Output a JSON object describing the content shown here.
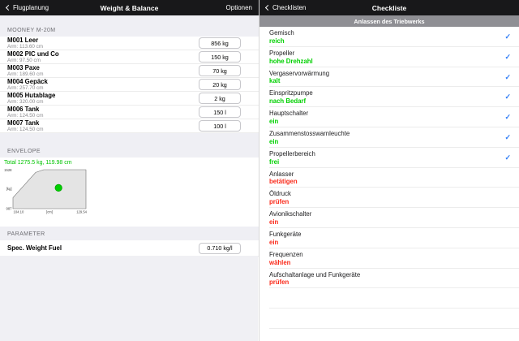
{
  "left_panel": {
    "nav": {
      "back_label": "Flugplanung",
      "title": "Weight & Balance",
      "right_label": "Optionen"
    },
    "section_aircraft": "MOONEY M-20M",
    "rows": [
      {
        "title": "M001 Leer",
        "arm": "Arm: 113.60 cm",
        "value": "856 kg"
      },
      {
        "title": "M002 PIC und Co",
        "arm": "Arm: 97.50 cm",
        "value": "150 kg"
      },
      {
        "title": "M003 Paxe",
        "arm": "Arm: 189.60 cm",
        "value": "70 kg"
      },
      {
        "title": "M004 Gepäck",
        "arm": "Arm: 257.70 cm",
        "value": "20 kg"
      },
      {
        "title": "M005 Hutablage",
        "arm": "Arm: 320.00 cm",
        "value": "2 kg"
      },
      {
        "title": "M006 Tank",
        "arm": "Arm: 124.50 cm",
        "value": "150 l"
      },
      {
        "title": "M007 Tank",
        "arm": "Arm: 124.50 cm",
        "value": "100 l"
      }
    ],
    "section_envelope": "ENVELOPE",
    "chart_data": {
      "type": "scatter",
      "title": "Total 1275.5 kg, 119.98 cm",
      "xlabel": "[cm]",
      "ylabel": "[kg]",
      "xlim": [
        104.1,
        129.54
      ],
      "ylim": [
        987,
        1528
      ],
      "x_ticks": [
        "104.10",
        "129.54"
      ],
      "y_ticks": [
        "987",
        "1528"
      ],
      "envelope_polygon": [
        [
          104.1,
          987
        ],
        [
          104.1,
          1140
        ],
        [
          112.0,
          1490
        ],
        [
          114.8,
          1528
        ],
        [
          129.54,
          1528
        ],
        [
          129.54,
          987
        ]
      ],
      "point": {
        "x": 119.98,
        "y": 1275.5
      },
      "legend": "none",
      "grid": false
    },
    "section_parameter": "PARAMETER",
    "parameter_row": {
      "title": "Spec. Weight Fuel",
      "value": "0.710 kg/l"
    }
  },
  "right_panel": {
    "nav": {
      "back_label": "Checklisten",
      "title": "Checkliste"
    },
    "banner": "Anlassen des Triebwerks",
    "items": [
      {
        "title": "Gemisch",
        "value": "reich",
        "state": "done"
      },
      {
        "title": "Propeller",
        "value": "hohe Drehzahl",
        "state": "done"
      },
      {
        "title": "Vergaservorwärmung",
        "value": "kalt",
        "state": "done"
      },
      {
        "title": "Einspritzpumpe",
        "value": "nach Bedarf",
        "state": "done"
      },
      {
        "title": "Hauptschalter",
        "value": "ein",
        "state": "done"
      },
      {
        "title": "Zusammenstosswarnleuchte",
        "value": "ein",
        "state": "done"
      },
      {
        "title": "Propellerbereich",
        "value": "frei",
        "state": "done"
      },
      {
        "title": "Anlasser",
        "value": "betätigen",
        "state": "pending"
      },
      {
        "title": "Öldruck",
        "value": "prüfen",
        "state": "pending"
      },
      {
        "title": "Avionikschalter",
        "value": "ein",
        "state": "pending"
      },
      {
        "title": "Funkgeräte",
        "value": "ein",
        "state": "pending"
      },
      {
        "title": "Frequenzen",
        "value": "wählen",
        "state": "pending"
      },
      {
        "title": "Aufschaltanlage und Funkgeräte",
        "value": "prüfen",
        "state": "pending"
      }
    ],
    "trailing_empty_rows": 2,
    "check_icon": "✓"
  },
  "colors": {
    "nav_bg": "#18181a",
    "section_bg": "#efeff4",
    "green": "#00d000",
    "red": "#fa2a1a",
    "check_blue": "#2e7cf6",
    "banner_bg": "#8f8f94",
    "envelope_fill": "#e4e4e4",
    "dot_green": "#00cf00"
  }
}
